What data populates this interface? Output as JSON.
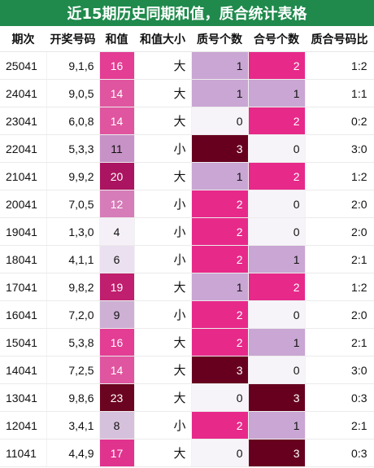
{
  "title": "近15期历史同期和值，质合统计表格",
  "columns": [
    "期次",
    "开奖号码",
    "和值",
    "和值大小",
    "质号个数",
    "合号个数",
    "质合号码比"
  ],
  "colors": {
    "header_green": "#1f8a4c",
    "sum_scale": {
      "4": "#f5f0f8",
      "6": "#ebe0ef",
      "8": "#d6c1dc",
      "9": "#cdb0d3",
      "11": "#c792c6",
      "12": "#d67cb8",
      "14": "#e0559f",
      "16": "#e33d94",
      "17": "#e0338e",
      "19": "#c01e6e",
      "20": "#ab1460",
      "23": "#6b0420"
    },
    "count_scale": {
      "0": "#f7f4f9",
      "1": "#c9a6d3",
      "2": "#e7298a",
      "3": "#67001f"
    }
  },
  "rows": [
    {
      "period": "25041",
      "numbers": "9,1,6",
      "sum": "16",
      "size": "大",
      "prime": "1",
      "composite": "2",
      "ratio": "1:2"
    },
    {
      "period": "24041",
      "numbers": "9,0,5",
      "sum": "14",
      "size": "大",
      "prime": "1",
      "composite": "1",
      "ratio": "1:1"
    },
    {
      "period": "23041",
      "numbers": "6,0,8",
      "sum": "14",
      "size": "大",
      "prime": "0",
      "composite": "2",
      "ratio": "0:2"
    },
    {
      "period": "22041",
      "numbers": "5,3,3",
      "sum": "11",
      "size": "小",
      "prime": "3",
      "composite": "0",
      "ratio": "3:0"
    },
    {
      "period": "21041",
      "numbers": "9,9,2",
      "sum": "20",
      "size": "大",
      "prime": "1",
      "composite": "2",
      "ratio": "1:2"
    },
    {
      "period": "20041",
      "numbers": "7,0,5",
      "sum": "12",
      "size": "小",
      "prime": "2",
      "composite": "0",
      "ratio": "2:0"
    },
    {
      "period": "19041",
      "numbers": "1,3,0",
      "sum": "4",
      "size": "小",
      "prime": "2",
      "composite": "0",
      "ratio": "2:0"
    },
    {
      "period": "18041",
      "numbers": "4,1,1",
      "sum": "6",
      "size": "小",
      "prime": "2",
      "composite": "1",
      "ratio": "2:1"
    },
    {
      "period": "17041",
      "numbers": "9,8,2",
      "sum": "19",
      "size": "大",
      "prime": "1",
      "composite": "2",
      "ratio": "1:2"
    },
    {
      "period": "16041",
      "numbers": "7,2,0",
      "sum": "9",
      "size": "小",
      "prime": "2",
      "composite": "0",
      "ratio": "2:0"
    },
    {
      "period": "15041",
      "numbers": "5,3,8",
      "sum": "16",
      "size": "大",
      "prime": "2",
      "composite": "1",
      "ratio": "2:1"
    },
    {
      "period": "14041",
      "numbers": "7,2,5",
      "sum": "14",
      "size": "大",
      "prime": "3",
      "composite": "0",
      "ratio": "3:0"
    },
    {
      "period": "13041",
      "numbers": "9,8,6",
      "sum": "23",
      "size": "大",
      "prime": "0",
      "composite": "3",
      "ratio": "0:3"
    },
    {
      "period": "12041",
      "numbers": "3,4,1",
      "sum": "8",
      "size": "小",
      "prime": "2",
      "composite": "1",
      "ratio": "2:1"
    },
    {
      "period": "11041",
      "numbers": "4,4,9",
      "sum": "17",
      "size": "大",
      "prime": "0",
      "composite": "3",
      "ratio": "0:3"
    }
  ]
}
